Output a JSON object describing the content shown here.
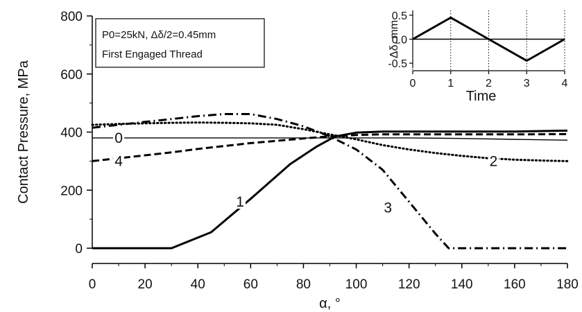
{
  "chart_data": [
    {
      "type": "line",
      "xlabel": "α, °",
      "ylabel": "Contact Pressure, MPa",
      "xlim": [
        0,
        180
      ],
      "ylim": [
        0,
        800
      ],
      "xticks": [
        "0",
        "20",
        "40",
        "60",
        "80",
        "100",
        "120",
        "140",
        "160",
        "180"
      ],
      "yticks": [
        "0",
        "200",
        "400",
        "600",
        "800"
      ],
      "annotation": [
        "P0=25kN, Δδ/2=0.45mm",
        "First Engaged Thread"
      ],
      "series": [
        {
          "name": "0",
          "style": "solid-thin",
          "x": [
            0,
            20,
            40,
            60,
            80,
            100,
            120,
            140,
            160,
            180
          ],
          "y": [
            380,
            380,
            380,
            380,
            380,
            380,
            380,
            378,
            375,
            372
          ]
        },
        {
          "name": "1",
          "style": "solid-thick",
          "x": [
            0,
            10,
            20,
            30,
            45,
            60,
            75,
            85,
            92,
            100,
            110,
            120,
            140,
            160,
            180
          ],
          "y": [
            0,
            0,
            0,
            0,
            55,
            170,
            290,
            350,
            385,
            398,
            402,
            402,
            402,
            402,
            405
          ]
        },
        {
          "name": "2",
          "style": "dotted",
          "x": [
            0,
            10,
            20,
            30,
            40,
            50,
            60,
            70,
            80,
            90,
            100,
            110,
            120,
            130,
            140,
            150,
            160,
            170,
            180
          ],
          "y": [
            425,
            428,
            430,
            432,
            433,
            432,
            430,
            425,
            410,
            392,
            375,
            355,
            340,
            328,
            318,
            310,
            305,
            302,
            300
          ]
        },
        {
          "name": "3",
          "style": "dashdot",
          "x": [
            0,
            10,
            20,
            30,
            40,
            50,
            60,
            70,
            80,
            90,
            100,
            110,
            120,
            130,
            135,
            140,
            160,
            180
          ],
          "y": [
            415,
            425,
            435,
            445,
            455,
            462,
            462,
            445,
            420,
            385,
            340,
            270,
            160,
            50,
            0,
            0,
            0,
            0
          ]
        },
        {
          "name": "4",
          "style": "dashed",
          "x": [
            0,
            10,
            20,
            30,
            40,
            50,
            60,
            70,
            80,
            90,
            100,
            110,
            120,
            140,
            160,
            180
          ],
          "y": [
            300,
            310,
            320,
            330,
            342,
            352,
            362,
            370,
            378,
            385,
            390,
            392,
            392,
            392,
            392,
            393
          ]
        }
      ],
      "curve_labels": [
        {
          "text": "0",
          "x": 10,
          "y": 380
        },
        {
          "text": "1",
          "x": 56,
          "y": 160
        },
        {
          "text": "2",
          "x": 152,
          "y": 300
        },
        {
          "text": "3",
          "x": 112,
          "y": 140
        },
        {
          "text": "4",
          "x": 10,
          "y": 300
        }
      ]
    },
    {
      "type": "line",
      "inset": true,
      "xlabel": "Time",
      "ylabel": "Δδ, mm",
      "xlim": [
        0,
        4
      ],
      "ylim": [
        -0.6,
        0.6
      ],
      "xticks": [
        "0",
        "1",
        "2",
        "3",
        "4"
      ],
      "yticks": [
        "0.5",
        "0.0",
        "-0.5"
      ],
      "series": [
        {
          "x": [
            0,
            1,
            2,
            3,
            4
          ],
          "y": [
            0,
            0.45,
            0,
            -0.45,
            0
          ]
        }
      ]
    }
  ]
}
